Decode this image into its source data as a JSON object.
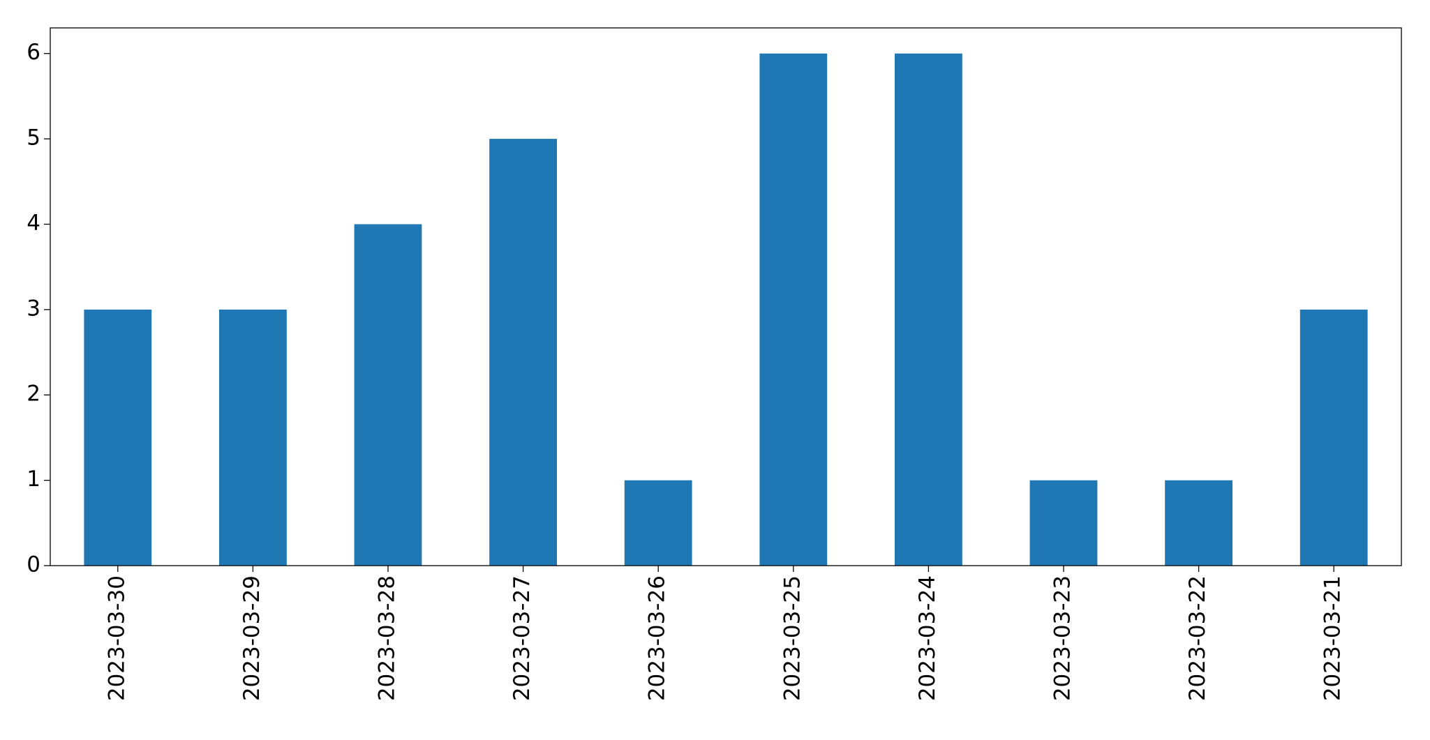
{
  "chart_data": {
    "type": "bar",
    "categories": [
      "2023-03-30",
      "2023-03-29",
      "2023-03-28",
      "2023-03-27",
      "2023-03-26",
      "2023-03-25",
      "2023-03-24",
      "2023-03-23",
      "2023-03-22",
      "2023-03-21"
    ],
    "values": [
      3,
      3,
      4,
      5,
      1,
      6,
      6,
      1,
      1,
      3
    ],
    "color": "#1f77b4",
    "ylim": [
      0,
      6.3
    ],
    "yticks": [
      0,
      1,
      2,
      3,
      4,
      5,
      6
    ],
    "grid": false
  }
}
